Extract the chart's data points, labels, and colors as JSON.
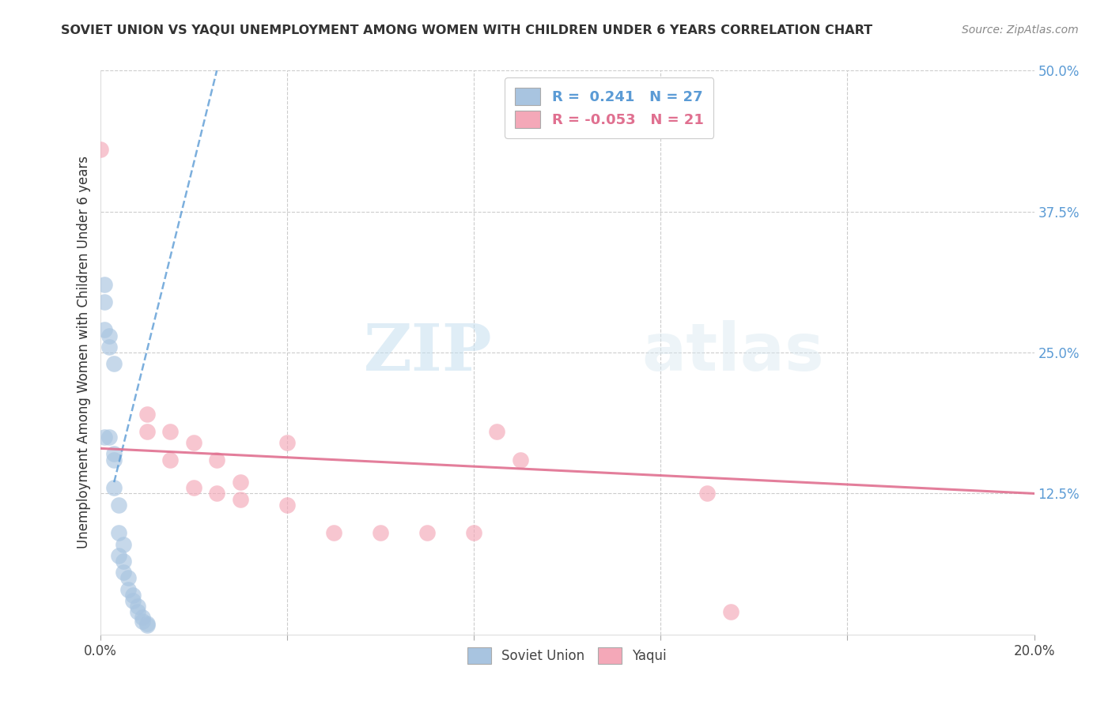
{
  "title": "SOVIET UNION VS YAQUI UNEMPLOYMENT AMONG WOMEN WITH CHILDREN UNDER 6 YEARS CORRELATION CHART",
  "source": "Source: ZipAtlas.com",
  "ylabel": "Unemployment Among Women with Children Under 6 years",
  "xlim": [
    0.0,
    0.2
  ],
  "ylim": [
    0.0,
    0.5
  ],
  "ytick_right_labels": [
    "12.5%",
    "25.0%",
    "37.5%",
    "50.0%"
  ],
  "ytick_right_values": [
    0.125,
    0.25,
    0.375,
    0.5
  ],
  "grid_color": "#cccccc",
  "background_color": "#ffffff",
  "soviet_color": "#a8c4e0",
  "yaqui_color": "#f4a8b8",
  "soviet_trend_color": "#5b9bd5",
  "yaqui_trend_color": "#e07090",
  "soviet_R": 0.241,
  "soviet_N": 27,
  "yaqui_R": -0.053,
  "yaqui_N": 21,
  "soviet_x": [
    0.001,
    0.001,
    0.001,
    0.002,
    0.002,
    0.003,
    0.003,
    0.003,
    0.004,
    0.004,
    0.004,
    0.005,
    0.005,
    0.005,
    0.006,
    0.006,
    0.007,
    0.007,
    0.008,
    0.008,
    0.009,
    0.009,
    0.01,
    0.01,
    0.001,
    0.002,
    0.003
  ],
  "soviet_y": [
    0.31,
    0.295,
    0.27,
    0.265,
    0.255,
    0.24,
    0.16,
    0.13,
    0.115,
    0.09,
    0.07,
    0.08,
    0.065,
    0.055,
    0.05,
    0.04,
    0.035,
    0.03,
    0.025,
    0.02,
    0.015,
    0.012,
    0.01,
    0.008,
    0.175,
    0.175,
    0.155
  ],
  "yaqui_x": [
    0.0,
    0.01,
    0.01,
    0.015,
    0.015,
    0.02,
    0.02,
    0.025,
    0.025,
    0.03,
    0.03,
    0.04,
    0.04,
    0.05,
    0.06,
    0.07,
    0.08,
    0.085,
    0.09,
    0.13,
    0.135
  ],
  "yaqui_y": [
    0.43,
    0.195,
    0.18,
    0.18,
    0.155,
    0.17,
    0.13,
    0.155,
    0.125,
    0.135,
    0.12,
    0.17,
    0.115,
    0.09,
    0.09,
    0.09,
    0.09,
    0.18,
    0.155,
    0.125,
    0.02
  ],
  "soviet_trend_x": [
    0.003,
    0.025
  ],
  "soviet_trend_y": [
    0.135,
    0.5
  ],
  "yaqui_trend_x": [
    0.0,
    0.2
  ],
  "yaqui_trend_y": [
    0.165,
    0.125
  ],
  "watermark_zip": "ZIP",
  "watermark_atlas": "atlas",
  "legend_label_soviet": "Soviet Union",
  "legend_label_yaqui": "Yaqui"
}
